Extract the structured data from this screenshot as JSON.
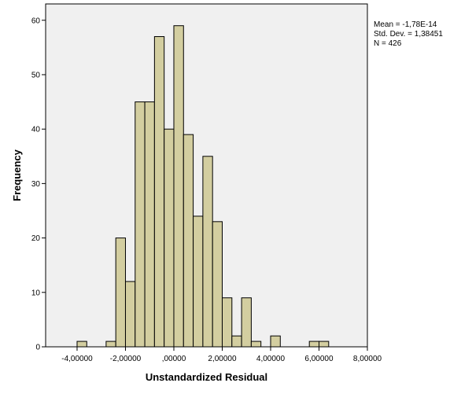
{
  "chart_data": {
    "type": "histogram",
    "xlabel": "Unstandardized Residual",
    "ylabel": "Frequency",
    "xlim": [
      -5.3,
      8.0
    ],
    "ylim": [
      0,
      63
    ],
    "x_ticks": [
      -4,
      -2,
      0,
      2,
      4,
      6,
      8
    ],
    "x_tick_labels": [
      "-4,00000",
      "-2,00000",
      ",00000",
      "2,00000",
      "4,00000",
      "6,00000",
      "8,00000"
    ],
    "y_ticks": [
      0,
      10,
      20,
      30,
      40,
      50,
      60
    ],
    "y_tick_labels": [
      "0",
      "10",
      "20",
      "30",
      "40",
      "50",
      "60"
    ],
    "bin_width": 0.4,
    "bins": [
      {
        "x0": -4.0,
        "x1": -3.6,
        "count": 1
      },
      {
        "x0": -2.8,
        "x1": -2.4,
        "count": 1
      },
      {
        "x0": -2.4,
        "x1": -2.0,
        "count": 20
      },
      {
        "x0": -2.0,
        "x1": -1.6,
        "count": 12
      },
      {
        "x0": -1.6,
        "x1": -1.2,
        "count": 45
      },
      {
        "x0": -1.2,
        "x1": -0.8,
        "count": 45
      },
      {
        "x0": -0.8,
        "x1": -0.4,
        "count": 57
      },
      {
        "x0": -0.4,
        "x1": 0.0,
        "count": 40
      },
      {
        "x0": 0.0,
        "x1": 0.4,
        "count": 59
      },
      {
        "x0": 0.4,
        "x1": 0.8,
        "count": 39
      },
      {
        "x0": 0.8,
        "x1": 1.2,
        "count": 24
      },
      {
        "x0": 1.2,
        "x1": 1.6,
        "count": 35
      },
      {
        "x0": 1.6,
        "x1": 2.0,
        "count": 23
      },
      {
        "x0": 2.0,
        "x1": 2.4,
        "count": 9
      },
      {
        "x0": 2.4,
        "x1": 2.8,
        "count": 2
      },
      {
        "x0": 2.8,
        "x1": 3.2,
        "count": 9
      },
      {
        "x0": 3.2,
        "x1": 3.6,
        "count": 1
      },
      {
        "x0": 4.0,
        "x1": 4.4,
        "count": 2
      },
      {
        "x0": 5.6,
        "x1": 6.0,
        "count": 1
      },
      {
        "x0": 6.0,
        "x1": 6.4,
        "count": 1
      }
    ],
    "grid": false,
    "colors": {
      "bar_fill": "#d3cea0",
      "bar_stroke": "#000000",
      "plot_background": "#f0f0f0"
    }
  },
  "stats": {
    "mean": "Mean = -1,78E-14",
    "std": "Std. Dev. = 1,38451",
    "n": "N = 426"
  }
}
